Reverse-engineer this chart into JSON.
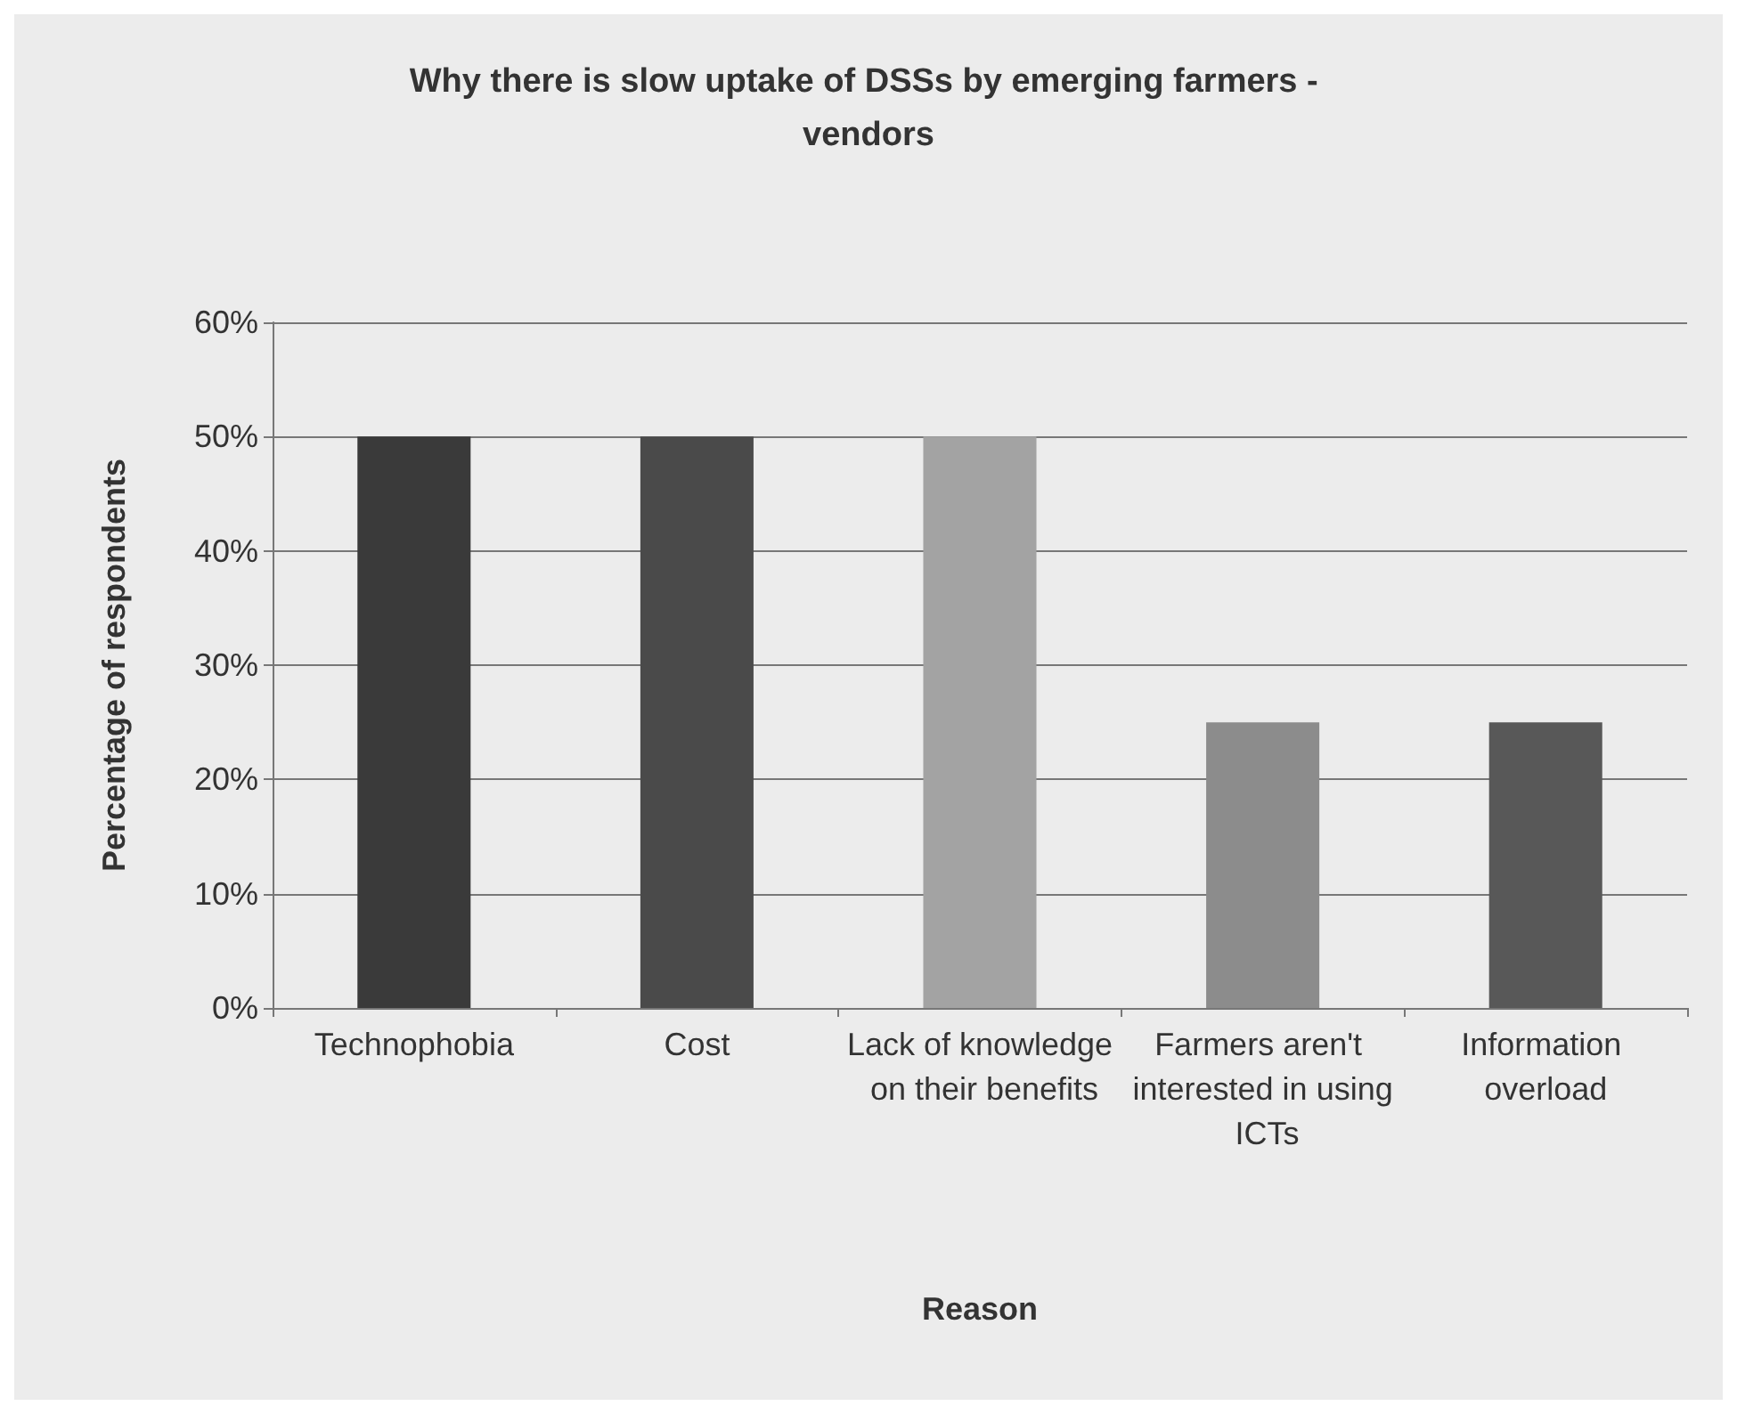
{
  "chart_data": {
    "type": "bar",
    "title": "Why there is slow uptake of DSSs by emerging farmers - vendors",
    "xlabel": "Reason",
    "ylabel": "Percentage of respondents",
    "categories": [
      "Technophobia",
      "Cost",
      "Lack of knowledge on their benefits",
      "Farmers aren't interested in using ICTs",
      "Information overload"
    ],
    "values": [
      50,
      50,
      50,
      25,
      25
    ],
    "colors": [
      "#3a3a3a",
      "#4a4a4a",
      "#a3a3a3",
      "#8c8c8c",
      "#585858"
    ],
    "ylim": [
      0,
      60
    ],
    "yticks": [
      {
        "value": 0,
        "label": "0%"
      },
      {
        "value": 10,
        "label": "10%"
      },
      {
        "value": 20,
        "label": "20%"
      },
      {
        "value": 30,
        "label": "30%"
      },
      {
        "value": 40,
        "label": "40%"
      },
      {
        "value": 50,
        "label": "50%"
      },
      {
        "value": 60,
        "label": "60%"
      }
    ],
    "grid": "y"
  }
}
